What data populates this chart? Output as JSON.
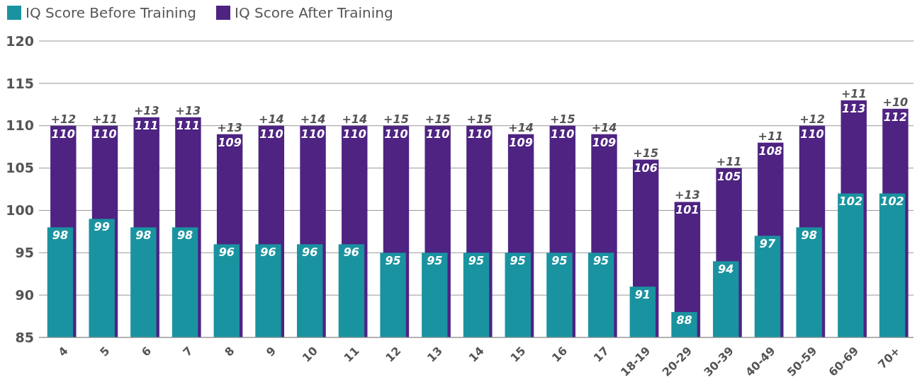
{
  "chart_data": {
    "type": "bar",
    "categories": [
      "4",
      "5",
      "6",
      "7",
      "8",
      "9",
      "10",
      "11",
      "12",
      "13",
      "14",
      "15",
      "16",
      "17",
      "18-19",
      "20-29",
      "30-39",
      "40-49",
      "50-59",
      "60-69",
      "70+"
    ],
    "series": [
      {
        "name": "IQ Score Before Training",
        "color": "#1a93a0",
        "values": [
          98,
          99,
          98,
          98,
          96,
          96,
          96,
          96,
          95,
          95,
          95,
          95,
          95,
          95,
          91,
          88,
          94,
          97,
          98,
          102,
          102
        ]
      },
      {
        "name": "IQ Score After Training",
        "color": "#4e2382",
        "values": [
          110,
          110,
          111,
          111,
          109,
          110,
          110,
          110,
          110,
          110,
          110,
          109,
          110,
          109,
          106,
          101,
          105,
          108,
          110,
          113,
          112
        ]
      }
    ],
    "ylim": [
      85,
      120
    ],
    "yticks": [
      85,
      90,
      95,
      100,
      105,
      110,
      115,
      120
    ],
    "grid": "y",
    "legend": "top left",
    "data_labels": true,
    "annotations": [
      {
        "text": "+12",
        "x": "4",
        "y": 110
      },
      {
        "text": "+11",
        "x": "5",
        "y": 110
      },
      {
        "text": "+13",
        "x": "6",
        "y": 111
      },
      {
        "text": "+13",
        "x": "7",
        "y": 111
      },
      {
        "text": "+13",
        "x": "8",
        "y": 109
      },
      {
        "text": "+14",
        "x": "9",
        "y": 110
      },
      {
        "text": "+14",
        "x": "10",
        "y": 110
      },
      {
        "text": "+14",
        "x": "11",
        "y": 110
      },
      {
        "text": "+15",
        "x": "12",
        "y": 110
      },
      {
        "text": "+15",
        "x": "13",
        "y": 110
      },
      {
        "text": "+15",
        "x": "14",
        "y": 110
      },
      {
        "text": "+14",
        "x": "15",
        "y": 109
      },
      {
        "text": "+15",
        "x": "16",
        "y": 110
      },
      {
        "text": "+14",
        "x": "17",
        "y": 109
      },
      {
        "text": "+15",
        "x": "18-19",
        "y": 106
      },
      {
        "text": "+13",
        "x": "20-29",
        "y": 101
      },
      {
        "text": "+11",
        "x": "30-39",
        "y": 105
      },
      {
        "text": "+11",
        "x": "40-49",
        "y": 108
      },
      {
        "text": "+12",
        "x": "50-59",
        "y": 110
      },
      {
        "text": "+11",
        "x": "60-69",
        "y": 113
      },
      {
        "text": "+10",
        "x": "70+",
        "y": 112
      }
    ]
  }
}
